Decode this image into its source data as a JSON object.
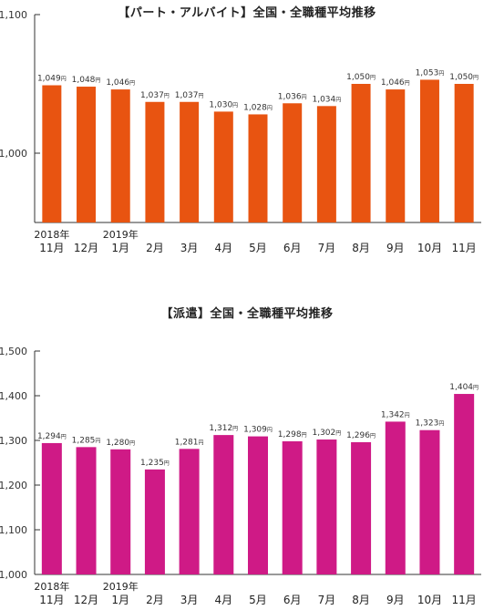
{
  "chart_data": [
    {
      "type": "bar",
      "title": "【パート・アルバイト】全国・全職種平均推移",
      "categories": [
        "2018年 11月",
        "12月",
        "2019年 1月",
        "2月",
        "3月",
        "4月",
        "5月",
        "6月",
        "7月",
        "8月",
        "9月",
        "10月",
        "11月"
      ],
      "values": [
        1049,
        1048,
        1046,
        1037,
        1037,
        1030,
        1028,
        1036,
        1034,
        1050,
        1046,
        1053,
        1050
      ],
      "data_labels": [
        "1,049",
        "1,048",
        "1,046",
        "1,037",
        "1,037",
        "1,030",
        "1,028",
        "1,036",
        "1,034",
        "1,050",
        "1,046",
        "1,053",
        "1,050"
      ],
      "value_unit": "円",
      "ylim": [
        950,
        1100
      ],
      "yticks": [
        1000,
        1100
      ],
      "ytick_labels": [
        "1,000",
        "1,100"
      ],
      "color": "#e85411",
      "grid": false,
      "xlabel": "",
      "ylabel": ""
    },
    {
      "type": "bar",
      "title": "【派遣】全国・全職種平均推移",
      "categories": [
        "2018年 11月",
        "12月",
        "2019年 1月",
        "2月",
        "3月",
        "4月",
        "5月",
        "6月",
        "7月",
        "8月",
        "9月",
        "10月",
        "11月"
      ],
      "values": [
        1294,
        1285,
        1280,
        1235,
        1281,
        1312,
        1309,
        1298,
        1302,
        1296,
        1342,
        1323,
        1404
      ],
      "data_labels": [
        "1,294",
        "1,285",
        "1,280",
        "1,235",
        "1,281",
        "1,312",
        "1,309",
        "1,298",
        "1,302",
        "1,296",
        "1,342",
        "1,323",
        "1,404"
      ],
      "value_unit": "円",
      "ylim": [
        1000,
        1500
      ],
      "yticks": [
        1000,
        1100,
        1200,
        1300,
        1400,
        1500
      ],
      "ytick_labels": [
        "1,000",
        "1,100",
        "1,200",
        "1,300",
        "1,400",
        "1,500"
      ],
      "color": "#cf1a86",
      "grid": false,
      "xlabel": "",
      "ylabel": ""
    }
  ]
}
